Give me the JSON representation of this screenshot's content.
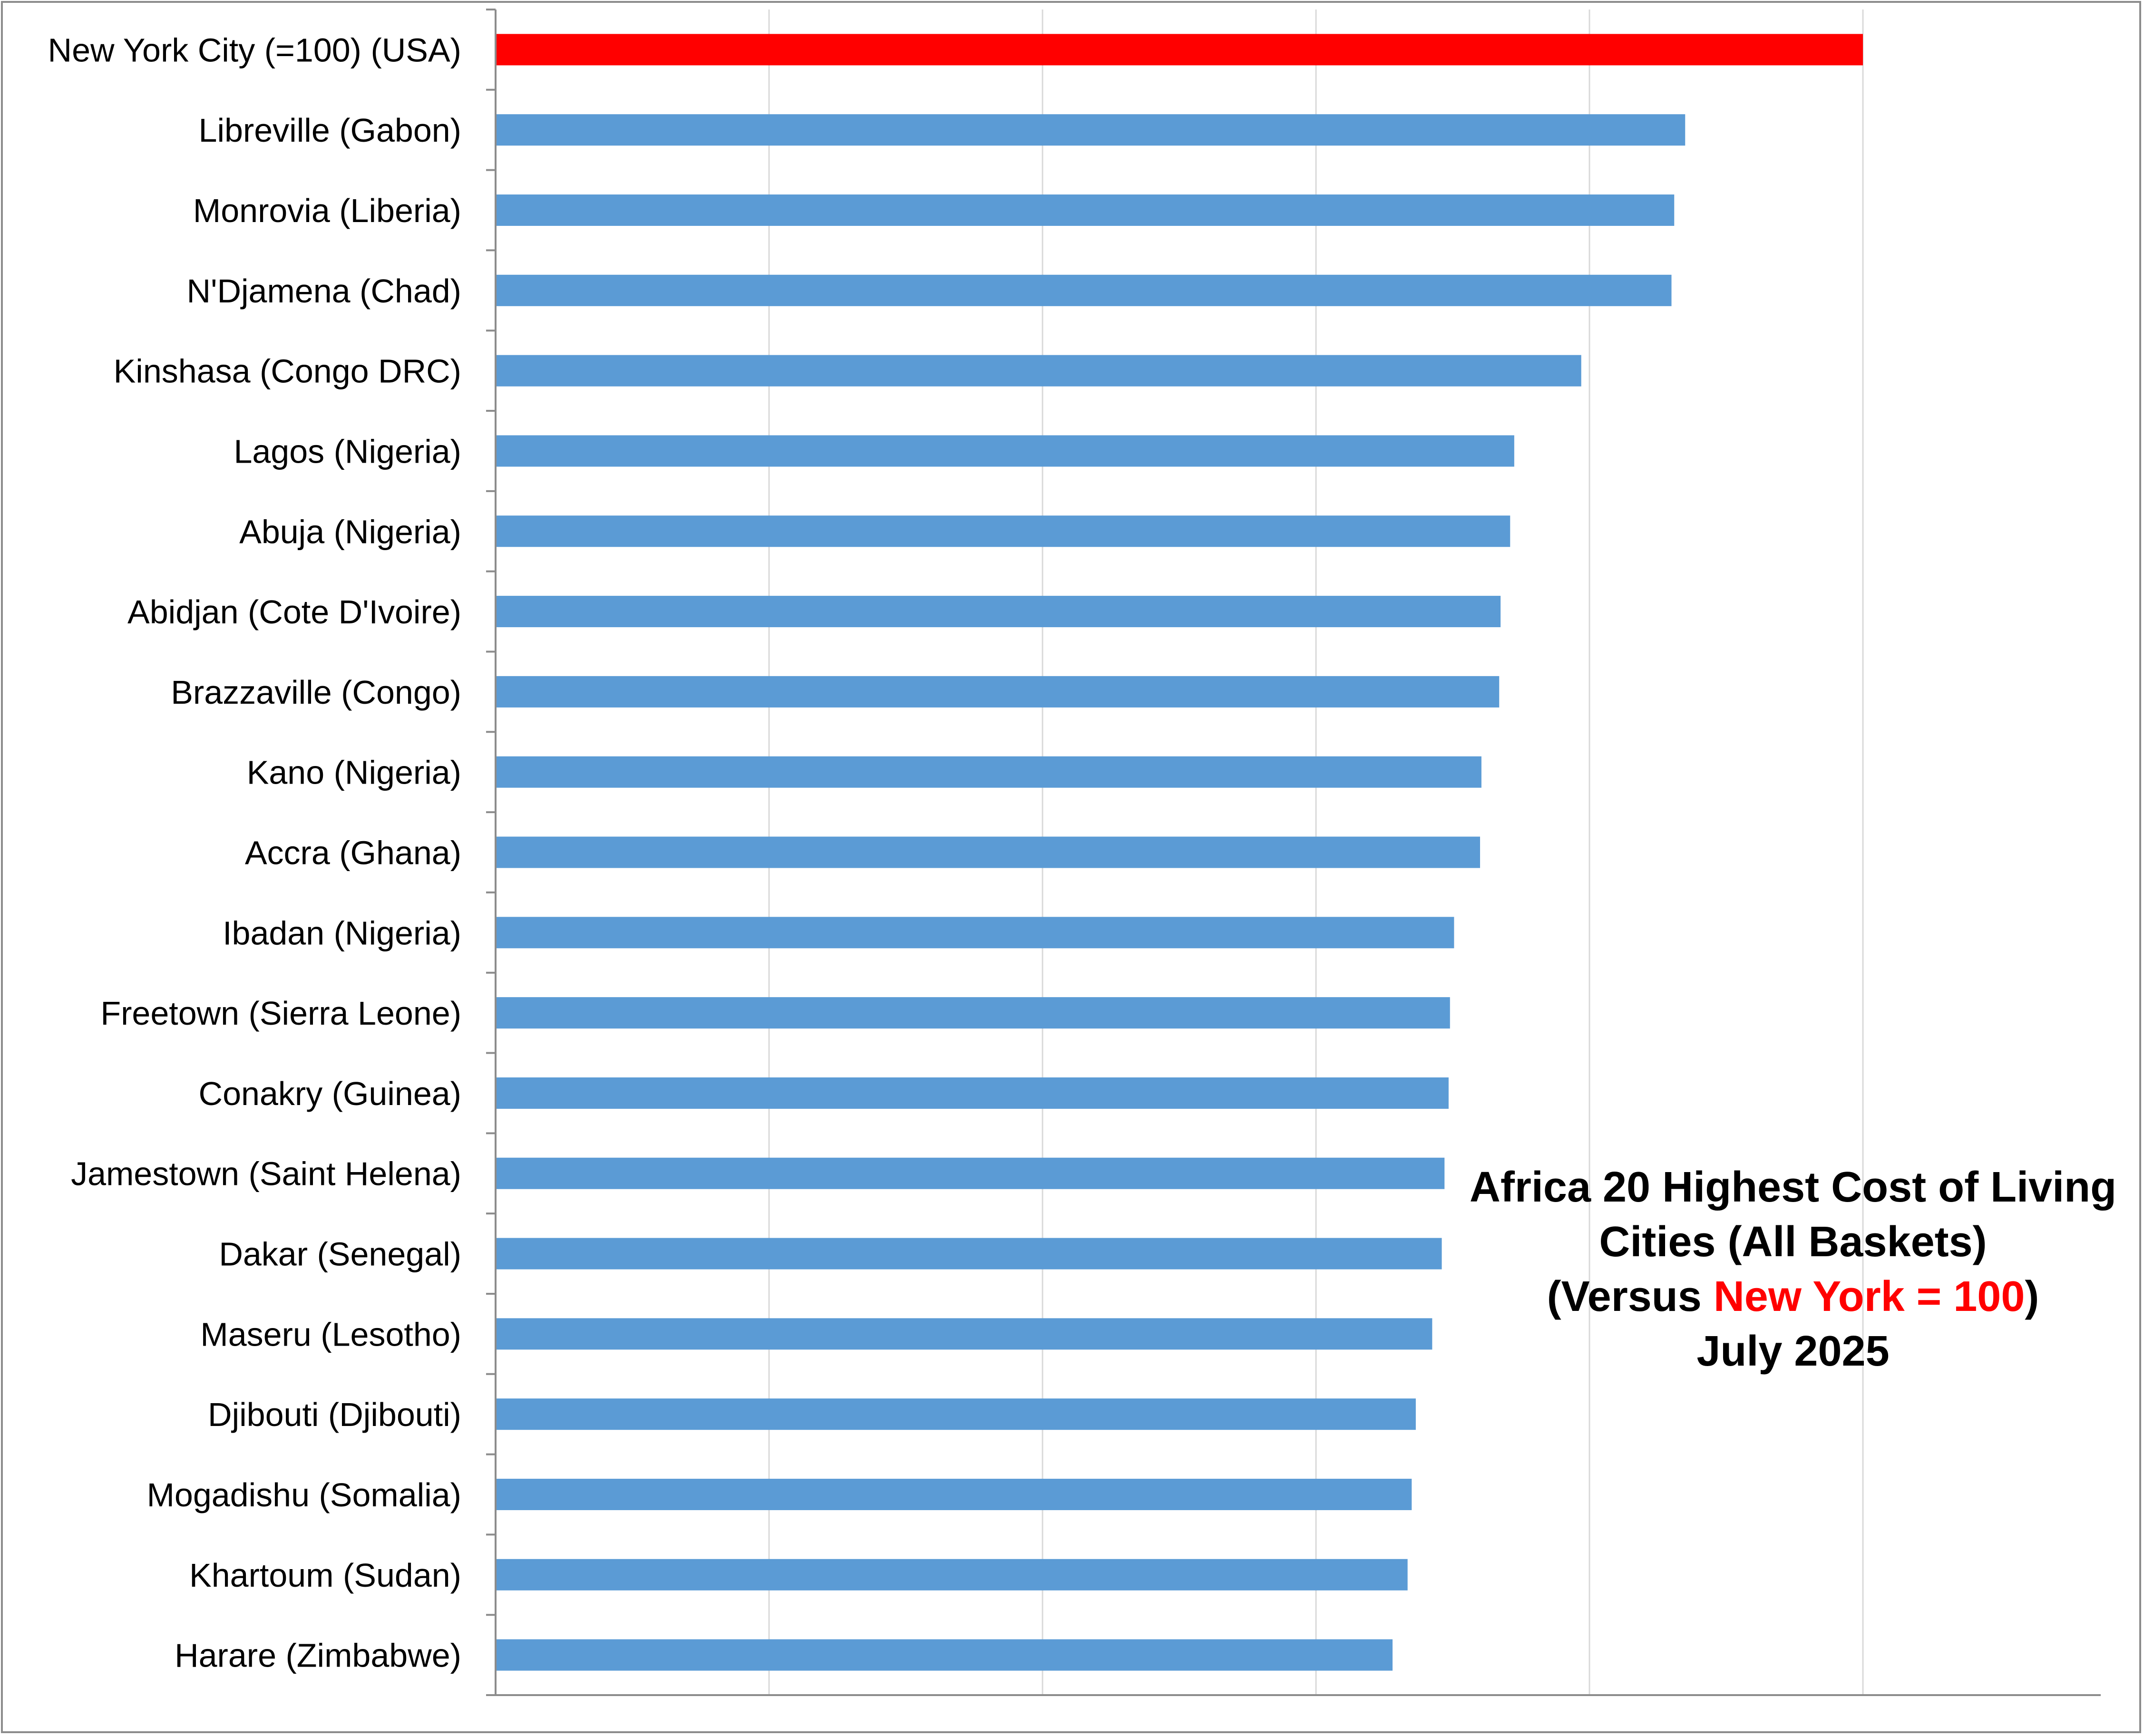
{
  "chart_data": {
    "type": "bar",
    "orientation": "horizontal",
    "title_lines": [
      [
        "Africa 20 Highest Cost of Living"
      ],
      [
        "Cities (All Baskets)"
      ],
      [
        "(Versus ",
        "New York = 100",
        ")"
      ],
      [
        "July 2025"
      ]
    ],
    "categories": [
      "New York City (=100) (USA)",
      "Libreville (Gabon)",
      "Monrovia (Liberia)",
      "N'Djamena (Chad)",
      "Kinshasa (Congo DRC)",
      "Lagos (Nigeria)",
      "Abuja (Nigeria)",
      "Abidjan (Cote D'Ivoire)",
      "Brazzaville (Congo)",
      "Kano (Nigeria)",
      "Accra (Ghana)",
      "Ibadan (Nigeria)",
      "Freetown (Sierra Leone)",
      "Conakry (Guinea)",
      "Jamestown (Saint Helena)",
      "Dakar (Senegal)",
      "Maseru (Lesotho)",
      "Djibouti (Djibouti)",
      "Mogadishu (Somalia)",
      "Khartoum (Sudan)",
      "Harare (Zimbabwe)"
    ],
    "values": [
      100,
      87,
      86.2,
      86,
      79.4,
      74.5,
      74.2,
      73.5,
      73.4,
      72.1,
      72,
      70.1,
      69.8,
      69.7,
      69.4,
      69.2,
      68.5,
      67.3,
      67,
      66.7,
      65.6
    ],
    "xlim": [
      0,
      100
    ],
    "x_gridlines": [
      20,
      40,
      60,
      80,
      100
    ],
    "grid": true,
    "x_tick_labels_visible": false,
    "legend": "none",
    "highlight_index": 0,
    "colors": {
      "highlight": "#ff0000",
      "bar": "#5b9bd5",
      "title_highlight": "#ff0000"
    }
  }
}
